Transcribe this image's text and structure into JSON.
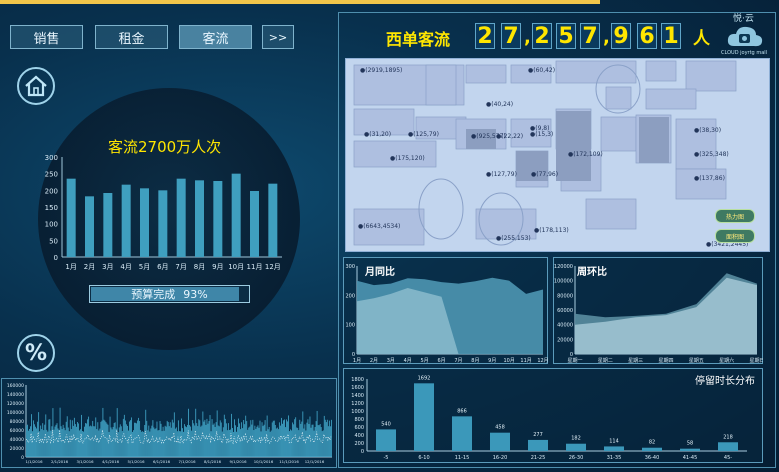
{
  "tabs": [
    {
      "label": "销售"
    },
    {
      "label": "租金"
    },
    {
      "label": "客流"
    },
    {
      "label": ">>"
    }
  ],
  "left": {
    "summary": "客流2700万人次",
    "budget_label": "预算完成",
    "budget_value": "93%",
    "budget_fraction": 0.93,
    "percent_symbol": "%"
  },
  "header": {
    "title": "西单客流",
    "digits": [
      "2",
      "7",
      "2",
      "5",
      "7",
      "9",
      "6",
      "1"
    ],
    "unit": "人",
    "logo_text": "悦·云",
    "logo_sub": "CLOUD joyrtg mall"
  },
  "map": {
    "labels": [
      "(2919,1895)",
      "(60,42)",
      "(40,24)",
      "(31,20)",
      "(125,79)",
      "(925,577)",
      "(22,22)",
      "(9,8)",
      "(15,3)",
      "(175,120)",
      "(172,109)",
      "(127,79)",
      "(77,96)",
      "(38,30)",
      "(325,348)",
      "(137,86)",
      "(6643,4534)",
      "(178,113)",
      "(255,153)",
      "(3421,2445)"
    ],
    "btn_heat": "热力图",
    "btn_area": "面积图"
  },
  "chart_data": [
    {
      "type": "bar",
      "title": "客流2700万人次",
      "categories": [
        "1月",
        "2月",
        "3月",
        "4月",
        "5月",
        "6月",
        "7月",
        "8月",
        "9月",
        "10月",
        "11月",
        "12月"
      ],
      "values": [
        235,
        182,
        192,
        217,
        206,
        200,
        235,
        230,
        228,
        250,
        198,
        220
      ],
      "ylim": [
        0,
        300
      ],
      "yticks": [
        "0",
        "50",
        "100",
        "150",
        "200",
        "250",
        "300"
      ]
    },
    {
      "type": "area",
      "title": "月同比",
      "categories": [
        "1月",
        "2月",
        "3月",
        "4月",
        "5月",
        "6月",
        "7月",
        "8月",
        "9月",
        "10月",
        "11月",
        "12月"
      ],
      "series": [
        {
          "values": [
            250,
            235,
            240,
            258,
            255,
            245,
            240,
            248,
            260,
            250,
            205,
            220
          ]
        },
        {
          "values": [
            180,
            190,
            205,
            225,
            210,
            195,
            0,
            0,
            0,
            0,
            0,
            0
          ]
        }
      ],
      "ylim": [
        0,
        300
      ],
      "yticks": [
        "0",
        "100",
        "200",
        "300"
      ]
    },
    {
      "type": "area",
      "title": "周环比",
      "categories": [
        "星期一",
        "星期二",
        "星期三",
        "星期四",
        "星期五",
        "星期六",
        "星期日"
      ],
      "series": [
        {
          "values": [
            55000,
            50000,
            52000,
            55000,
            68000,
            110000,
            96000
          ]
        },
        {
          "values": [
            40000,
            44000,
            50000,
            53000,
            64000,
            104000,
            94000
          ]
        }
      ],
      "ylim": [
        0,
        120000
      ],
      "yticks": [
        "0",
        "20000",
        "40000",
        "60000",
        "80000",
        "100000",
        "120000"
      ]
    },
    {
      "type": "bar",
      "title": "停留时长分布",
      "categories": [
        "-5",
        "6-10",
        "11-15",
        "16-20",
        "21-25",
        "26-30",
        "31-35",
        "36-40",
        "41-45",
        "45-"
      ],
      "values": [
        540,
        1692,
        866,
        458,
        277,
        182,
        114,
        82,
        58,
        218
      ],
      "ylim": [
        0,
        1800
      ],
      "yticks": [
        "0",
        "200",
        "400",
        "600",
        "800",
        "1000",
        "1200",
        "1400",
        "1600",
        "1800"
      ]
    },
    {
      "type": "bar",
      "title": "",
      "yticks": [
        "0",
        "20000",
        "40000",
        "60000",
        "80000",
        "100000",
        "120000",
        "140000",
        "160000"
      ],
      "ylim": [
        0,
        160000
      ],
      "xticks": [
        "1/1/2016",
        "2/1/2016",
        "3/1/2016",
        "4/1/2016",
        "5/1/2016",
        "6/1/2016",
        "7/1/2016",
        "8/1/2016",
        "9/1/2016",
        "10/1/2016",
        "11/1/2016",
        "12/1/2016"
      ]
    }
  ]
}
